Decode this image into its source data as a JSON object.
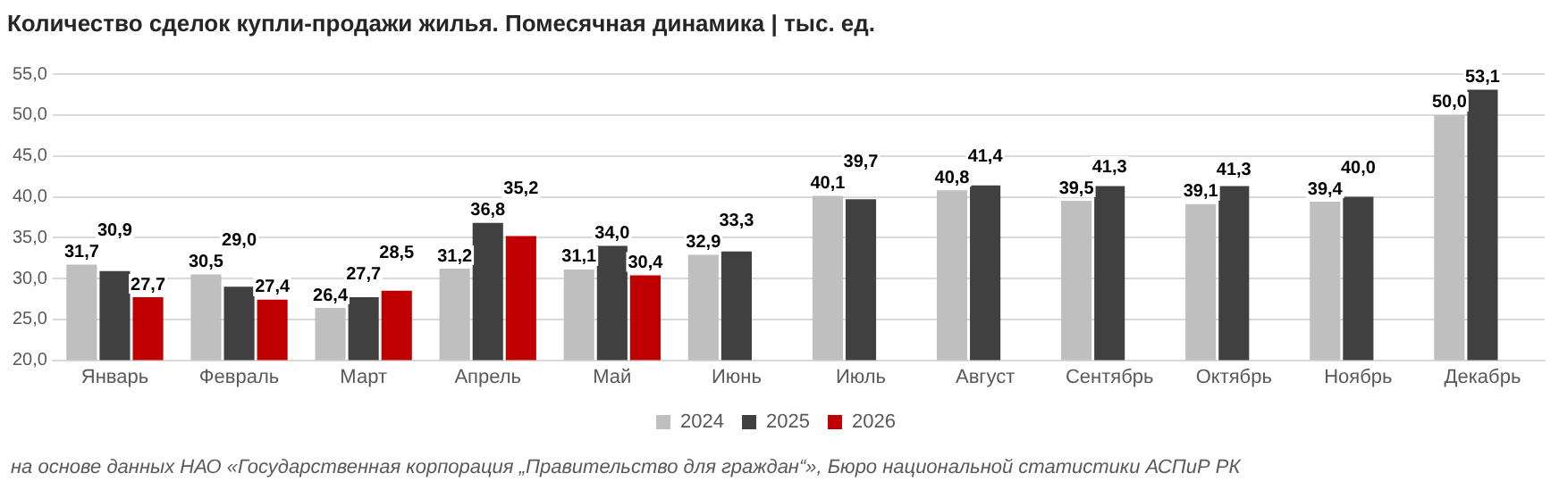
{
  "chart_data": {
    "type": "bar",
    "title": "Количество сделок купли-продажи жилья. Помесячная динамика | тыс. ед.",
    "categories": [
      "Январь",
      "Февраль",
      "Март",
      "Апрель",
      "Май",
      "Июнь",
      "Июль",
      "Август",
      "Сентябрь",
      "Октябрь",
      "Ноябрь",
      "Декабрь"
    ],
    "series": [
      {
        "name": "2024",
        "color": "#bfbfbf",
        "values": [
          31.7,
          30.5,
          26.4,
          31.2,
          31.1,
          32.9,
          40.1,
          40.8,
          39.5,
          39.1,
          39.4,
          50.0
        ],
        "value_labels": [
          "31,7",
          "30,5",
          "26,4",
          "31,2",
          "31,1",
          "32,9",
          "40,1",
          "40,8",
          "39,5",
          "39,1",
          "39,4",
          "50,0"
        ]
      },
      {
        "name": "2025",
        "color": "#404040",
        "values": [
          30.9,
          29.0,
          27.7,
          36.8,
          34.0,
          33.3,
          39.7,
          41.4,
          41.3,
          41.3,
          40.0,
          53.1
        ],
        "value_labels": [
          "30,9",
          "29,0",
          "27,7",
          "36,8",
          "34,0",
          "33,3",
          "39,7",
          "41,4",
          "41,3",
          "41,3",
          "40,0",
          "53,1"
        ]
      },
      {
        "name": "2026",
        "color": "#c00000",
        "values": [
          27.7,
          27.4,
          28.5,
          35.2,
          30.4,
          null,
          null,
          null,
          null,
          null,
          null,
          null
        ],
        "value_labels": [
          "27,7",
          "27,4",
          "28,5",
          "35,2",
          "30,4",
          null,
          null,
          null,
          null,
          null,
          null,
          null
        ]
      }
    ],
    "ylim": [
      20,
      55
    ],
    "yticks": [
      {
        "value": 20,
        "label": "20,0"
      },
      {
        "value": 25,
        "label": "25,0"
      },
      {
        "value": 30,
        "label": "30,0"
      },
      {
        "value": 35,
        "label": "35,0"
      },
      {
        "value": 40,
        "label": "40,0"
      },
      {
        "value": 45,
        "label": "45,0"
      },
      {
        "value": 50,
        "label": "50,0"
      },
      {
        "value": 55,
        "label": "55,0"
      }
    ],
    "grid": "y",
    "legend": "bottom",
    "annotations": [
      "на основе данных НАО «Государственная корпорация „Правительство для граждан“», Бюро национальной статистики АСПиР РК"
    ]
  }
}
